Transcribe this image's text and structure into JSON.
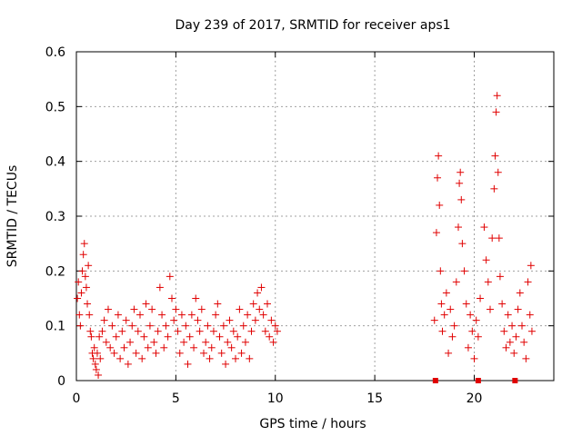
{
  "chart_data": {
    "type": "scatter",
    "title": "Day 239 of 2017, SRMTID for receiver aps1",
    "xlabel": "GPS time / hours",
    "ylabel": "SRMTID / TECUs",
    "xlim": [
      0,
      24
    ],
    "ylim": [
      0,
      0.6
    ],
    "x_ticks": [
      0,
      5,
      10,
      15,
      20
    ],
    "x_tick_labels": [
      "0",
      "5",
      "10",
      "15",
      "20"
    ],
    "y_ticks": [
      0,
      0.1,
      0.2,
      0.3,
      0.4,
      0.5,
      0.6
    ],
    "y_tick_labels": [
      "0",
      "0.1",
      "0.2",
      "0.3",
      "0.4",
      "0.5",
      "0.6"
    ],
    "grid": true,
    "marker": "+",
    "color": "#e00000",
    "series": [
      {
        "name": "aps1",
        "points": [
          [
            0.05,
            0.15
          ],
          [
            0.1,
            0.18
          ],
          [
            0.15,
            0.12
          ],
          [
            0.2,
            0.1
          ],
          [
            0.25,
            0.16
          ],
          [
            0.3,
            0.2
          ],
          [
            0.35,
            0.23
          ],
          [
            0.4,
            0.25
          ],
          [
            0.45,
            0.19
          ],
          [
            0.5,
            0.17
          ],
          [
            0.55,
            0.14
          ],
          [
            0.6,
            0.21
          ],
          [
            0.65,
            0.12
          ],
          [
            0.7,
            0.09
          ],
          [
            0.75,
            0.08
          ],
          [
            0.8,
            0.05
          ],
          [
            0.85,
            0.04
          ],
          [
            0.9,
            0.06
          ],
          [
            0.95,
            0.03
          ],
          [
            1.0,
            0.02
          ],
          [
            1.05,
            0.05
          ],
          [
            1.1,
            0.01
          ],
          [
            1.15,
            0.08
          ],
          [
            1.2,
            0.04
          ],
          [
            1.3,
            0.09
          ],
          [
            1.4,
            0.11
          ],
          [
            1.5,
            0.07
          ],
          [
            1.6,
            0.13
          ],
          [
            1.7,
            0.06
          ],
          [
            1.8,
            0.1
          ],
          [
            1.9,
            0.05
          ],
          [
            2.0,
            0.08
          ],
          [
            2.1,
            0.12
          ],
          [
            2.2,
            0.04
          ],
          [
            2.3,
            0.09
          ],
          [
            2.4,
            0.06
          ],
          [
            2.5,
            0.11
          ],
          [
            2.6,
            0.03
          ],
          [
            2.7,
            0.07
          ],
          [
            2.8,
            0.1
          ],
          [
            2.9,
            0.13
          ],
          [
            3.0,
            0.05
          ],
          [
            3.1,
            0.09
          ],
          [
            3.2,
            0.12
          ],
          [
            3.3,
            0.04
          ],
          [
            3.4,
            0.08
          ],
          [
            3.5,
            0.14
          ],
          [
            3.6,
            0.06
          ],
          [
            3.7,
            0.1
          ],
          [
            3.8,
            0.13
          ],
          [
            3.9,
            0.07
          ],
          [
            4.0,
            0.05
          ],
          [
            4.1,
            0.09
          ],
          [
            4.2,
            0.17
          ],
          [
            4.3,
            0.12
          ],
          [
            4.4,
            0.06
          ],
          [
            4.5,
            0.1
          ],
          [
            4.6,
            0.08
          ],
          [
            4.7,
            0.19
          ],
          [
            4.8,
            0.15
          ],
          [
            4.9,
            0.11
          ],
          [
            5.0,
            0.13
          ],
          [
            5.1,
            0.09
          ],
          [
            5.2,
            0.05
          ],
          [
            5.3,
            0.12
          ],
          [
            5.4,
            0.07
          ],
          [
            5.5,
            0.1
          ],
          [
            5.6,
            0.03
          ],
          [
            5.7,
            0.08
          ],
          [
            5.8,
            0.12
          ],
          [
            5.9,
            0.06
          ],
          [
            6.0,
            0.15
          ],
          [
            6.1,
            0.11
          ],
          [
            6.2,
            0.09
          ],
          [
            6.3,
            0.13
          ],
          [
            6.4,
            0.05
          ],
          [
            6.5,
            0.07
          ],
          [
            6.6,
            0.1
          ],
          [
            6.7,
            0.04
          ],
          [
            6.8,
            0.06
          ],
          [
            6.9,
            0.09
          ],
          [
            7.0,
            0.12
          ],
          [
            7.1,
            0.14
          ],
          [
            7.2,
            0.08
          ],
          [
            7.3,
            0.05
          ],
          [
            7.4,
            0.1
          ],
          [
            7.5,
            0.03
          ],
          [
            7.6,
            0.07
          ],
          [
            7.7,
            0.11
          ],
          [
            7.8,
            0.06
          ],
          [
            7.9,
            0.09
          ],
          [
            8.0,
            0.04
          ],
          [
            8.1,
            0.08
          ],
          [
            8.2,
            0.13
          ],
          [
            8.3,
            0.05
          ],
          [
            8.4,
            0.1
          ],
          [
            8.5,
            0.07
          ],
          [
            8.6,
            0.12
          ],
          [
            8.7,
            0.04
          ],
          [
            8.8,
            0.09
          ],
          [
            8.9,
            0.14
          ],
          [
            9.0,
            0.11
          ],
          [
            9.1,
            0.16
          ],
          [
            9.2,
            0.13
          ],
          [
            9.3,
            0.17
          ],
          [
            9.4,
            0.12
          ],
          [
            9.5,
            0.09
          ],
          [
            9.6,
            0.14
          ],
          [
            9.7,
            0.08
          ],
          [
            9.8,
            0.11
          ],
          [
            9.9,
            0.07
          ],
          [
            10.0,
            0.1
          ],
          [
            10.1,
            0.09
          ],
          [
            18.0,
            0.11
          ],
          [
            18.1,
            0.27
          ],
          [
            18.15,
            0.37
          ],
          [
            18.2,
            0.41
          ],
          [
            18.25,
            0.32
          ],
          [
            18.3,
            0.2
          ],
          [
            18.35,
            0.14
          ],
          [
            18.4,
            0.09
          ],
          [
            18.5,
            0.12
          ],
          [
            18.6,
            0.16
          ],
          [
            18.7,
            0.05
          ],
          [
            18.8,
            0.13
          ],
          [
            18.9,
            0.08
          ],
          [
            19.0,
            0.1
          ],
          [
            19.1,
            0.18
          ],
          [
            19.2,
            0.28
          ],
          [
            19.25,
            0.36
          ],
          [
            19.3,
            0.38
          ],
          [
            19.35,
            0.33
          ],
          [
            19.4,
            0.25
          ],
          [
            19.5,
            0.2
          ],
          [
            19.6,
            0.14
          ],
          [
            19.7,
            0.06
          ],
          [
            19.8,
            0.12
          ],
          [
            19.9,
            0.09
          ],
          [
            20.0,
            0.04
          ],
          [
            20.1,
            0.11
          ],
          [
            20.2,
            0.08
          ],
          [
            20.3,
            0.15
          ],
          [
            20.5,
            0.28
          ],
          [
            20.6,
            0.22
          ],
          [
            20.7,
            0.18
          ],
          [
            20.8,
            0.13
          ],
          [
            20.9,
            0.26
          ],
          [
            21.0,
            0.35
          ],
          [
            21.05,
            0.41
          ],
          [
            21.1,
            0.49
          ],
          [
            21.15,
            0.52
          ],
          [
            21.2,
            0.38
          ],
          [
            21.25,
            0.26
          ],
          [
            21.3,
            0.19
          ],
          [
            21.4,
            0.14
          ],
          [
            21.5,
            0.09
          ],
          [
            21.6,
            0.06
          ],
          [
            21.7,
            0.12
          ],
          [
            21.8,
            0.07
          ],
          [
            21.9,
            0.1
          ],
          [
            22.0,
            0.05
          ],
          [
            22.1,
            0.08
          ],
          [
            22.2,
            0.13
          ],
          [
            22.3,
            0.16
          ],
          [
            22.4,
            0.1
          ],
          [
            22.5,
            0.07
          ],
          [
            22.6,
            0.04
          ],
          [
            22.7,
            0.18
          ],
          [
            22.8,
            0.12
          ],
          [
            22.85,
            0.21
          ],
          [
            22.9,
            0.09
          ]
        ]
      }
    ],
    "zero_markers_x": [
      18.05,
      20.2,
      22.05
    ]
  }
}
